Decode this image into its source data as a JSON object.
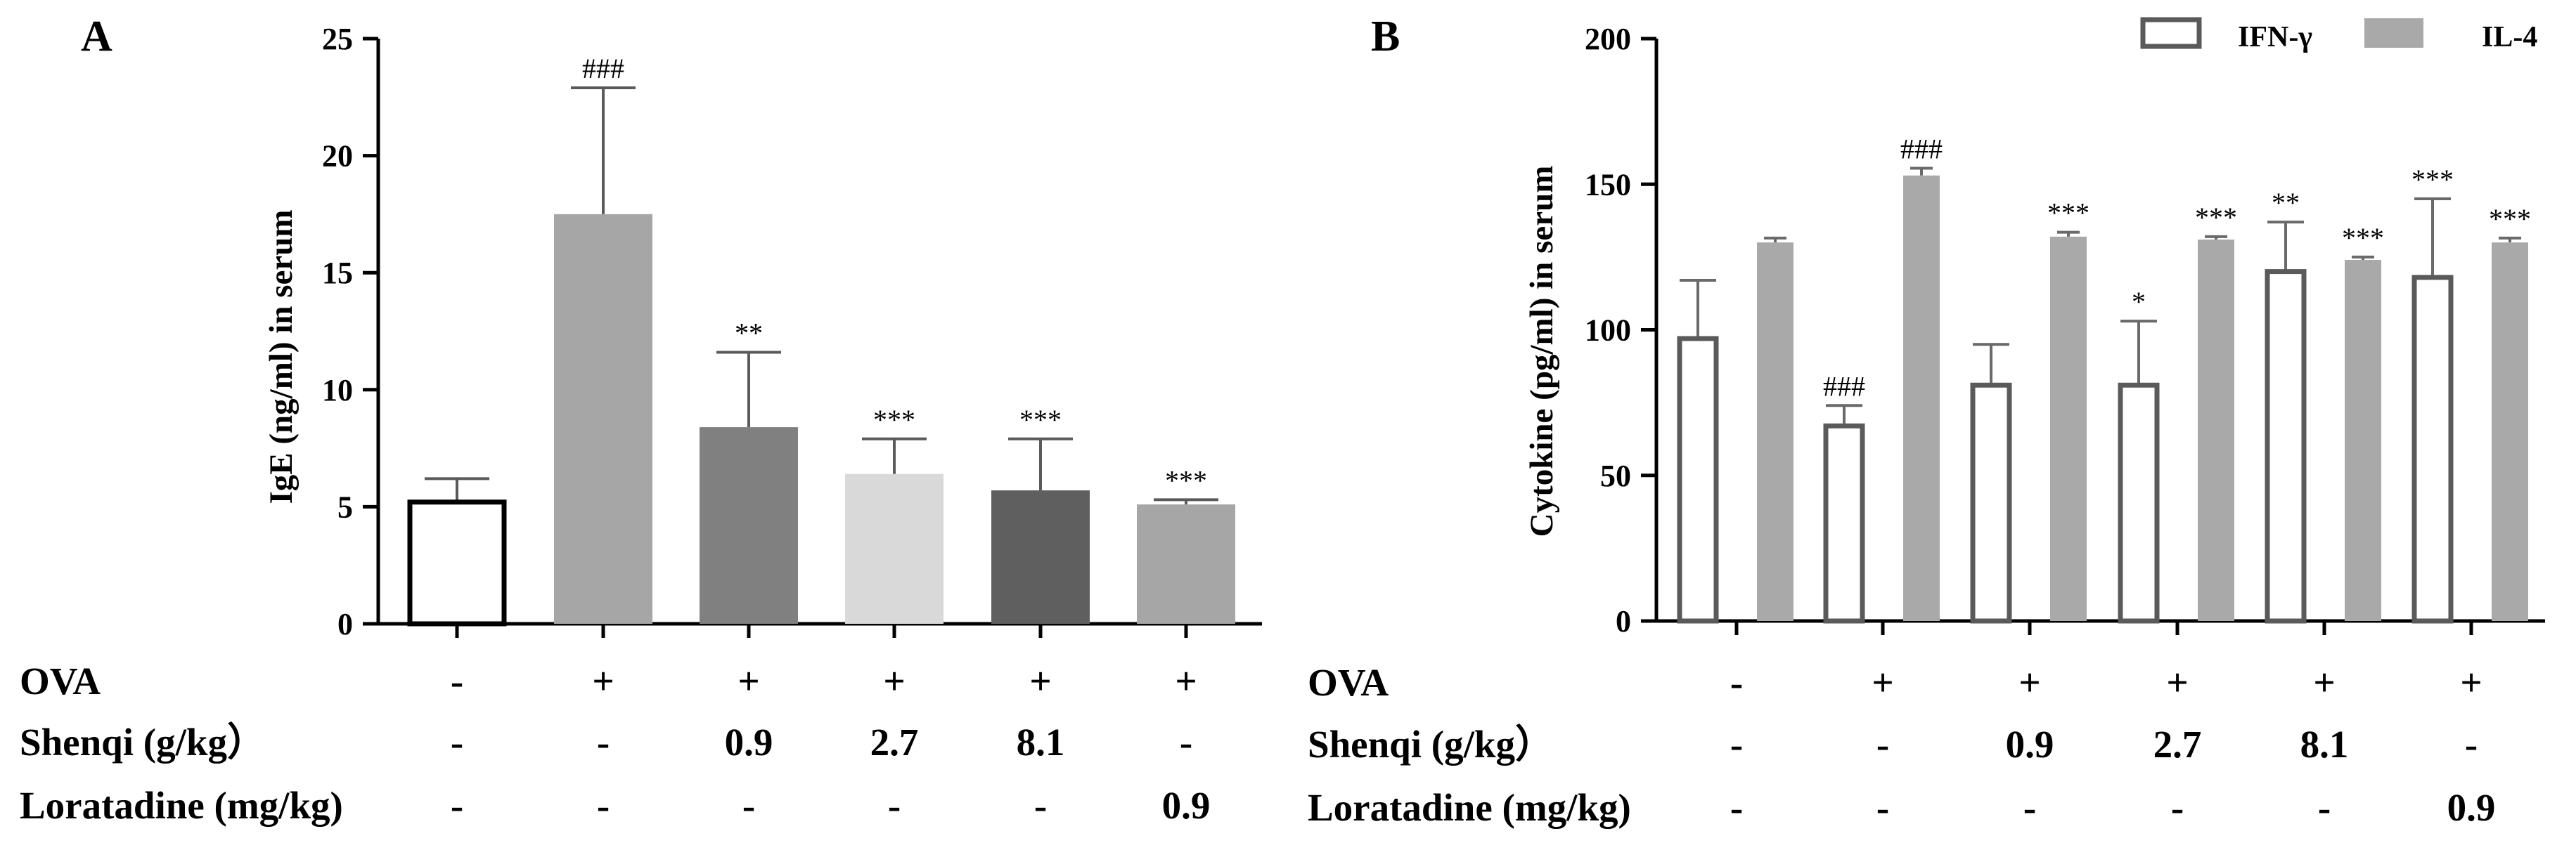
{
  "colors": {
    "axis": "#000000",
    "ifn_outline": "#5a5a5a",
    "il4_fill": "#a9a9a9",
    "errorbar_A": "#5a5a5a",
    "errorbar_B": "#6a6a6a"
  },
  "table": {
    "row_labels": [
      "OVA",
      "Shenqi (g/kg）",
      "Loratadine (mg/kg)"
    ],
    "rows": [
      [
        "-",
        "+",
        "+",
        "+",
        "+",
        "+"
      ],
      [
        "-",
        "-",
        "0.9",
        "2.7",
        "8.1",
        "-"
      ],
      [
        "-",
        "-",
        "-",
        "-",
        "-",
        "0.9"
      ]
    ]
  },
  "chart_data": [
    {
      "panel": "A",
      "type": "bar",
      "ylabel": "IgE (ng/ml) in serum",
      "ylim": [
        0,
        25
      ],
      "yticks": [
        0,
        5,
        10,
        15,
        20,
        25
      ],
      "grid": false,
      "values": [
        5.2,
        17.5,
        8.4,
        6.4,
        5.7,
        5.1
      ],
      "errors": [
        1.0,
        5.4,
        3.2,
        1.5,
        2.2,
        0.2
      ],
      "annotations": [
        "",
        "###",
        "**",
        "***",
        "***",
        "***"
      ],
      "bar_colors": [
        "#ffffff",
        "#a6a6a6",
        "#808080",
        "#d9d9d9",
        "#5f5f5f",
        "#a6a6a6"
      ]
    },
    {
      "panel": "B",
      "type": "bar",
      "ylabel": "Cytokine (pg/ml) in serum",
      "ylim": [
        0,
        200
      ],
      "yticks": [
        0,
        50,
        100,
        150,
        200
      ],
      "grid": false,
      "legend_position": "top-right",
      "series": [
        {
          "name": "IFN-γ",
          "values": [
            97,
            67,
            81,
            81,
            120,
            118
          ],
          "errors": [
            20,
            7,
            14,
            22,
            17,
            27
          ],
          "annotations": [
            "",
            "###",
            "",
            "*",
            "**",
            "***"
          ]
        },
        {
          "name": "IL-4",
          "values": [
            130,
            153,
            132,
            131,
            124,
            130
          ],
          "errors": [
            1.5,
            2.5,
            1.5,
            1,
            1,
            1.5
          ],
          "annotations": [
            "",
            "###",
            "***",
            "***",
            "***",
            "***"
          ]
        }
      ]
    }
  ]
}
